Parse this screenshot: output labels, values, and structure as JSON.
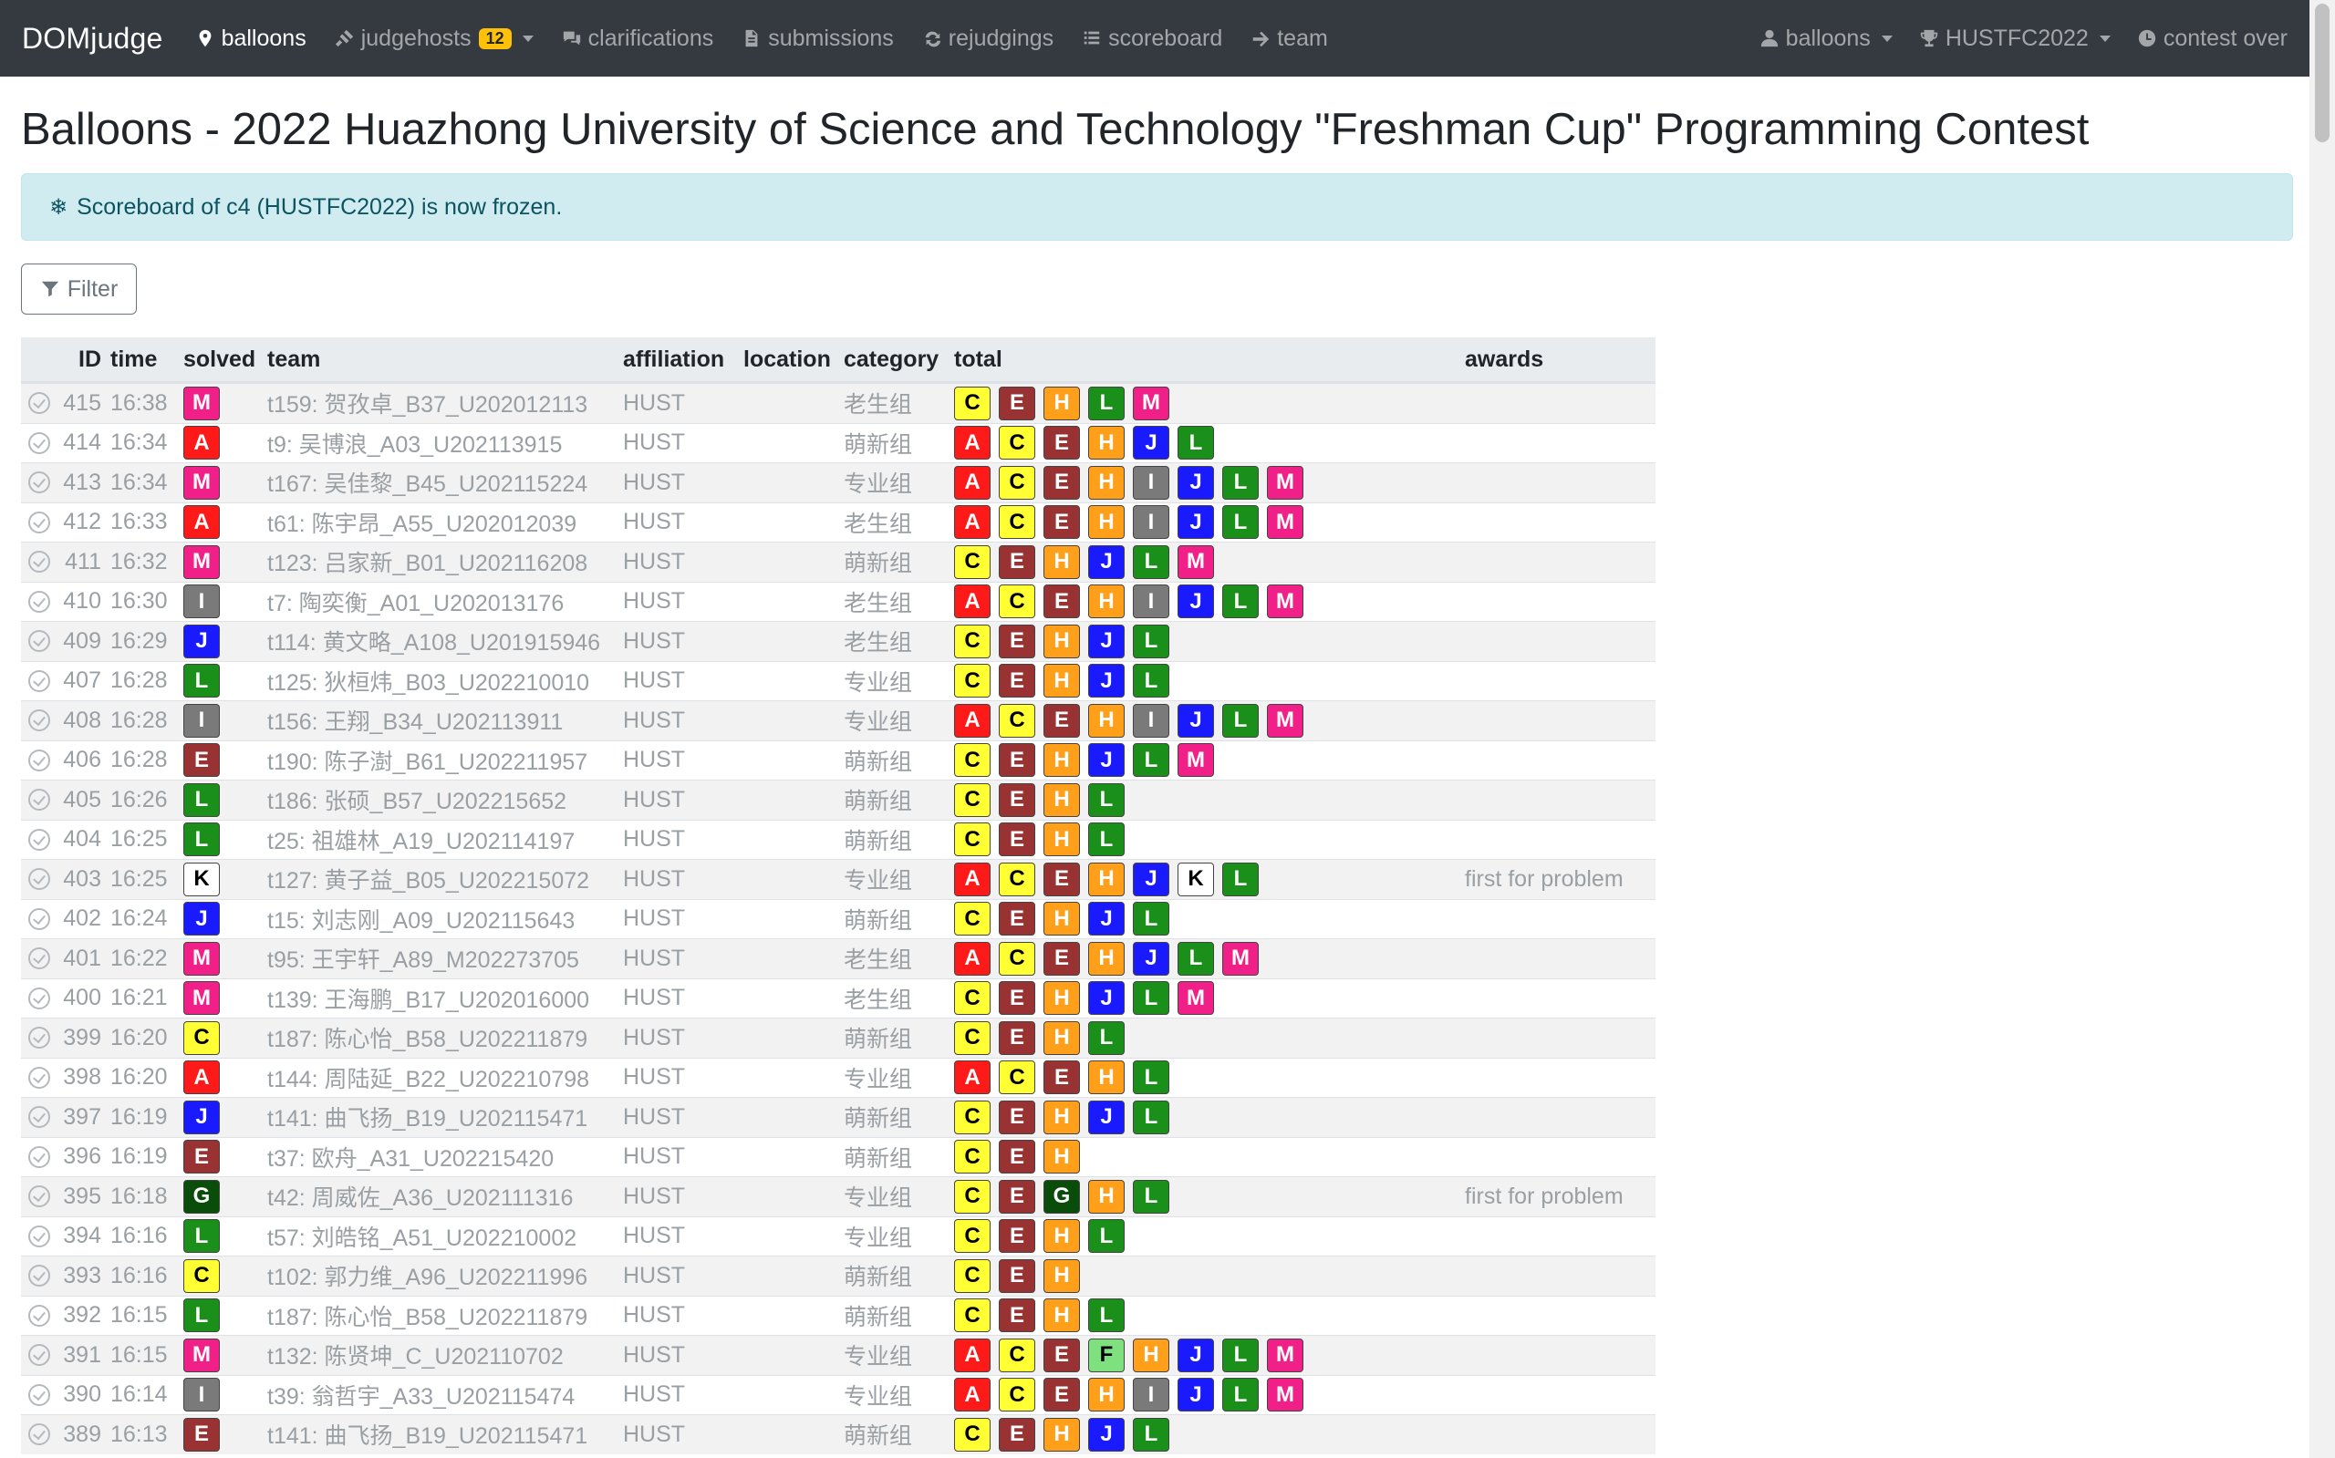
{
  "navbar": {
    "brand": "DOMjudge",
    "items": [
      {
        "label": "balloons",
        "icon": "map-marker-icon",
        "active": true
      },
      {
        "label": "judgehosts",
        "icon": "gavel-icon",
        "badge": "12",
        "dropdown": true
      },
      {
        "label": "clarifications",
        "icon": "comments-icon"
      },
      {
        "label": "submissions",
        "icon": "file-icon"
      },
      {
        "label": "rejudgings",
        "icon": "sync-icon"
      },
      {
        "label": "scoreboard",
        "icon": "list-icon"
      },
      {
        "label": "team",
        "icon": "arrow-right-icon"
      }
    ],
    "right": [
      {
        "label": "balloons",
        "icon": "user-icon",
        "dropdown": true
      },
      {
        "label": "HUSTFC2022",
        "icon": "trophy-icon",
        "dropdown": true
      },
      {
        "label": "contest over",
        "icon": "clock-icon"
      }
    ]
  },
  "page": {
    "title": "Balloons - 2022 Huazhong University of Science and Technology \"Freshman Cup\" Programming Contest",
    "alert": "Scoreboard of c4 (HUSTFC2022) is now frozen.",
    "filter_label": "Filter"
  },
  "table": {
    "headers": {
      "id": "ID",
      "time": "time",
      "solved": "solved",
      "team": "team",
      "affiliation": "affiliation",
      "location": "location",
      "category": "category",
      "total": "total",
      "awards": "awards"
    },
    "rows": [
      {
        "id": "415",
        "time": "16:38",
        "solved": "M",
        "team": "t159: 贺孜卓_B37_U202012113",
        "affiliation": "HUST",
        "category": "老生组",
        "total": [
          "C",
          "E",
          "H",
          "L",
          "M"
        ],
        "awards": ""
      },
      {
        "id": "414",
        "time": "16:34",
        "solved": "A",
        "team": "t9: 吴博浪_A03_U202113915",
        "affiliation": "HUST",
        "category": "萌新组",
        "total": [
          "A",
          "C",
          "E",
          "H",
          "J",
          "L"
        ],
        "awards": ""
      },
      {
        "id": "413",
        "time": "16:34",
        "solved": "M",
        "team": "t167: 吴佳黎_B45_U202115224",
        "affiliation": "HUST",
        "category": "专业组",
        "total": [
          "A",
          "C",
          "E",
          "H",
          "I",
          "J",
          "L",
          "M"
        ],
        "awards": ""
      },
      {
        "id": "412",
        "time": "16:33",
        "solved": "A",
        "team": "t61: 陈宇昂_A55_U202012039",
        "affiliation": "HUST",
        "category": "老生组",
        "total": [
          "A",
          "C",
          "E",
          "H",
          "I",
          "J",
          "L",
          "M"
        ],
        "awards": ""
      },
      {
        "id": "411",
        "time": "16:32",
        "solved": "M",
        "team": "t123: 吕家新_B01_U202116208",
        "affiliation": "HUST",
        "category": "萌新组",
        "total": [
          "C",
          "E",
          "H",
          "J",
          "L",
          "M"
        ],
        "awards": ""
      },
      {
        "id": "410",
        "time": "16:30",
        "solved": "I",
        "team": "t7: 陶奕衡_A01_U202013176",
        "affiliation": "HUST",
        "category": "老生组",
        "total": [
          "A",
          "C",
          "E",
          "H",
          "I",
          "J",
          "L",
          "M"
        ],
        "awards": ""
      },
      {
        "id": "409",
        "time": "16:29",
        "solved": "J",
        "team": "t114: 黄文略_A108_U201915946",
        "affiliation": "HUST",
        "category": "老生组",
        "total": [
          "C",
          "E",
          "H",
          "J",
          "L"
        ],
        "awards": ""
      },
      {
        "id": "407",
        "time": "16:28",
        "solved": "L",
        "team": "t125: 狄桓炜_B03_U202210010",
        "affiliation": "HUST",
        "category": "专业组",
        "total": [
          "C",
          "E",
          "H",
          "J",
          "L"
        ],
        "awards": ""
      },
      {
        "id": "408",
        "time": "16:28",
        "solved": "I",
        "team": "t156: 王翔_B34_U202113911",
        "affiliation": "HUST",
        "category": "专业组",
        "total": [
          "A",
          "C",
          "E",
          "H",
          "I",
          "J",
          "L",
          "M"
        ],
        "awards": ""
      },
      {
        "id": "406",
        "time": "16:28",
        "solved": "E",
        "team": "t190: 陈子澍_B61_U202211957",
        "affiliation": "HUST",
        "category": "萌新组",
        "total": [
          "C",
          "E",
          "H",
          "J",
          "L",
          "M"
        ],
        "awards": ""
      },
      {
        "id": "405",
        "time": "16:26",
        "solved": "L",
        "team": "t186: 张硕_B57_U202215652",
        "affiliation": "HUST",
        "category": "萌新组",
        "total": [
          "C",
          "E",
          "H",
          "L"
        ],
        "awards": ""
      },
      {
        "id": "404",
        "time": "16:25",
        "solved": "L",
        "team": "t25: 祖雄林_A19_U202114197",
        "affiliation": "HUST",
        "category": "萌新组",
        "total": [
          "C",
          "E",
          "H",
          "L"
        ],
        "awards": ""
      },
      {
        "id": "403",
        "time": "16:25",
        "solved": "K",
        "team": "t127: 黄子益_B05_U202215072",
        "affiliation": "HUST",
        "category": "专业组",
        "total": [
          "A",
          "C",
          "E",
          "H",
          "J",
          "K",
          "L"
        ],
        "awards": "first for problem"
      },
      {
        "id": "402",
        "time": "16:24",
        "solved": "J",
        "team": "t15: 刘志刚_A09_U202115643",
        "affiliation": "HUST",
        "category": "萌新组",
        "total": [
          "C",
          "E",
          "H",
          "J",
          "L"
        ],
        "awards": ""
      },
      {
        "id": "401",
        "time": "16:22",
        "solved": "M",
        "team": "t95: 王宇轩_A89_M202273705",
        "affiliation": "HUST",
        "category": "老生组",
        "total": [
          "A",
          "C",
          "E",
          "H",
          "J",
          "L",
          "M"
        ],
        "awards": ""
      },
      {
        "id": "400",
        "time": "16:21",
        "solved": "M",
        "team": "t139: 王海鹏_B17_U202016000",
        "affiliation": "HUST",
        "category": "老生组",
        "total": [
          "C",
          "E",
          "H",
          "J",
          "L",
          "M"
        ],
        "awards": ""
      },
      {
        "id": "399",
        "time": "16:20",
        "solved": "C",
        "team": "t187: 陈心怡_B58_U202211879",
        "affiliation": "HUST",
        "category": "萌新组",
        "total": [
          "C",
          "E",
          "H",
          "L"
        ],
        "awards": ""
      },
      {
        "id": "398",
        "time": "16:20",
        "solved": "A",
        "team": "t144: 周陆延_B22_U202210798",
        "affiliation": "HUST",
        "category": "专业组",
        "total": [
          "A",
          "C",
          "E",
          "H",
          "L"
        ],
        "awards": ""
      },
      {
        "id": "397",
        "time": "16:19",
        "solved": "J",
        "team": "t141: 曲飞扬_B19_U202115471",
        "affiliation": "HUST",
        "category": "萌新组",
        "total": [
          "C",
          "E",
          "H",
          "J",
          "L"
        ],
        "awards": ""
      },
      {
        "id": "396",
        "time": "16:19",
        "solved": "E",
        "team": "t37: 欧舟_A31_U202215420",
        "affiliation": "HUST",
        "category": "萌新组",
        "total": [
          "C",
          "E",
          "H"
        ],
        "awards": ""
      },
      {
        "id": "395",
        "time": "16:18",
        "solved": "G",
        "team": "t42: 周威佐_A36_U202111316",
        "affiliation": "HUST",
        "category": "专业组",
        "total": [
          "C",
          "E",
          "G",
          "H",
          "L"
        ],
        "awards": "first for problem"
      },
      {
        "id": "394",
        "time": "16:16",
        "solved": "L",
        "team": "t57: 刘皓铭_A51_U202210002",
        "affiliation": "HUST",
        "category": "专业组",
        "total": [
          "C",
          "E",
          "H",
          "L"
        ],
        "awards": ""
      },
      {
        "id": "393",
        "time": "16:16",
        "solved": "C",
        "team": "t102: 郭力维_A96_U202211996",
        "affiliation": "HUST",
        "category": "萌新组",
        "total": [
          "C",
          "E",
          "H"
        ],
        "awards": ""
      },
      {
        "id": "392",
        "time": "16:15",
        "solved": "L",
        "team": "t187: 陈心怡_B58_U202211879",
        "affiliation": "HUST",
        "category": "萌新组",
        "total": [
          "C",
          "E",
          "H",
          "L"
        ],
        "awards": ""
      },
      {
        "id": "391",
        "time": "16:15",
        "solved": "M",
        "team": "t132: 陈贤坤_C_U202110702",
        "affiliation": "HUST",
        "category": "专业组",
        "total": [
          "A",
          "C",
          "E",
          "F",
          "H",
          "J",
          "L",
          "M"
        ],
        "awards": ""
      },
      {
        "id": "390",
        "time": "16:14",
        "solved": "I",
        "team": "t39: 翁哲宇_A33_U202115474",
        "affiliation": "HUST",
        "category": "专业组",
        "total": [
          "A",
          "C",
          "E",
          "H",
          "I",
          "J",
          "L",
          "M"
        ],
        "awards": ""
      },
      {
        "id": "389",
        "time": "16:13",
        "solved": "E",
        "team": "t141: 曲飞扬_B19_U202115471",
        "affiliation": "HUST",
        "category": "萌新组",
        "total": [
          "C",
          "E",
          "H",
          "J",
          "L"
        ],
        "awards": ""
      }
    ]
  }
}
